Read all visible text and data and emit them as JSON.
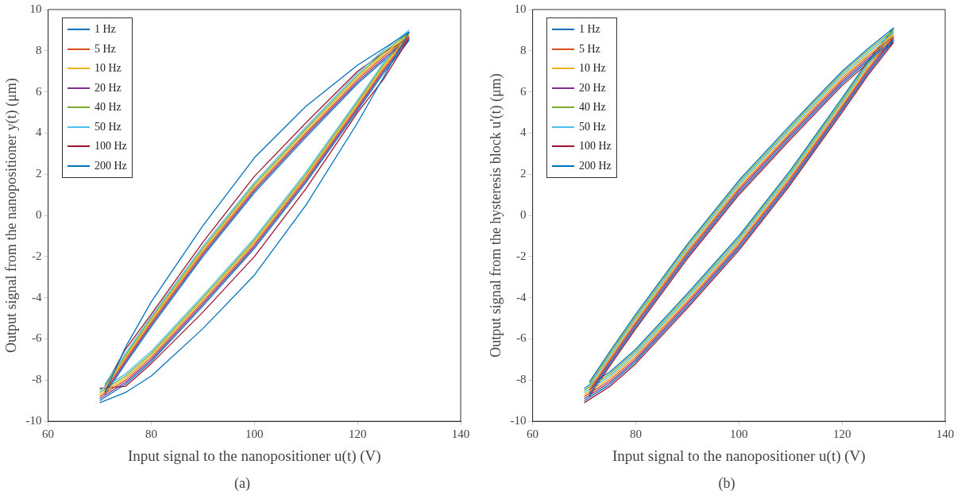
{
  "chart_data": [
    {
      "type": "line",
      "xlabel": "Input signal to the nanopositioner u(t) (V)",
      "ylabel": "Output signal from the nanopositioner y(t) (μm)",
      "xlim": [
        60,
        140
      ],
      "xticks": [
        60,
        80,
        100,
        120,
        140
      ],
      "ylim": [
        -10,
        10
      ],
      "yticks": [
        -10,
        -8,
        -6,
        -4,
        -2,
        0,
        2,
        4,
        6,
        8,
        10
      ],
      "legend": "top left",
      "annotations": [
        "(a)"
      ],
      "series": [
        {
          "name": "1 Hz",
          "color": "#0072bd",
          "x": [
            70,
            75,
            80,
            90,
            100,
            110,
            120,
            125,
            130,
            125,
            120,
            110,
            100,
            90,
            80,
            75,
            71
          ],
          "values": [
            -9.1,
            -8.6,
            -7.8,
            -5.5,
            -2.9,
            0.5,
            4.5,
            6.7,
            8.9,
            8.1,
            7.3,
            5.3,
            2.8,
            -0.5,
            -4.2,
            -6.4,
            -8.6
          ]
        },
        {
          "name": "5 Hz",
          "color": "#d95319",
          "x": [
            70,
            75,
            80,
            90,
            100,
            110,
            120,
            125,
            130,
            125,
            120,
            110,
            100,
            90,
            80,
            75,
            71
          ],
          "values": [
            -8.8,
            -8.0,
            -6.9,
            -4.2,
            -1.4,
            1.8,
            5.3,
            7.1,
            8.7,
            7.7,
            6.6,
            4.0,
            1.3,
            -1.8,
            -5.2,
            -7.0,
            -8.5
          ]
        },
        {
          "name": "10 Hz",
          "color": "#edb120",
          "x": [
            70,
            75,
            80,
            90,
            100,
            110,
            120,
            125,
            130,
            125,
            120,
            110,
            100,
            90,
            80,
            75,
            71
          ],
          "values": [
            -8.7,
            -7.9,
            -6.8,
            -4.1,
            -1.3,
            1.9,
            5.4,
            7.2,
            8.8,
            7.8,
            6.7,
            4.1,
            1.4,
            -1.7,
            -5.1,
            -6.9,
            -8.4
          ]
        },
        {
          "name": "20 Hz",
          "color": "#7e2f8e",
          "x": [
            70,
            75,
            80,
            90,
            100,
            110,
            120,
            125,
            130,
            125,
            120,
            110,
            100,
            90,
            80,
            75,
            71
          ],
          "values": [
            -8.9,
            -8.1,
            -7.0,
            -4.3,
            -1.5,
            1.7,
            5.2,
            7.0,
            8.6,
            7.6,
            6.5,
            3.9,
            1.2,
            -1.9,
            -5.3,
            -7.1,
            -8.6
          ]
        },
        {
          "name": "40 Hz",
          "color": "#77ac30",
          "x": [
            70,
            75,
            80,
            90,
            100,
            110,
            120,
            125,
            130,
            125,
            120,
            110,
            100,
            90,
            80,
            75,
            71
          ],
          "values": [
            -8.6,
            -7.8,
            -6.7,
            -4.0,
            -1.2,
            2.0,
            5.5,
            7.3,
            8.9,
            7.9,
            6.8,
            4.2,
            1.5,
            -1.6,
            -5.0,
            -6.8,
            -8.3
          ]
        },
        {
          "name": "50 Hz",
          "color": "#4dbeee",
          "x": [
            70,
            75,
            80,
            90,
            100,
            110,
            120,
            125,
            130,
            125,
            120,
            110,
            100,
            90,
            80,
            75,
            71
          ],
          "values": [
            -8.5,
            -7.7,
            -6.6,
            -3.9,
            -1.1,
            2.1,
            5.6,
            7.4,
            9.0,
            8.0,
            6.9,
            4.3,
            1.6,
            -1.5,
            -4.9,
            -6.7,
            -8.2
          ]
        },
        {
          "name": "100 Hz",
          "color": "#a2142f",
          "x": [
            70,
            75,
            80,
            90,
            100,
            110,
            120,
            125,
            130,
            125,
            120,
            110,
            100,
            90,
            80,
            75,
            71
          ],
          "values": [
            -8.4,
            -8.3,
            -7.2,
            -4.7,
            -2.0,
            1.3,
            5.0,
            6.6,
            8.6,
            7.9,
            7.0,
            4.5,
            1.9,
            -1.3,
            -4.8,
            -6.5,
            -8.3
          ]
        },
        {
          "name": "200 Hz",
          "color": "#0072bd",
          "x": [
            70,
            75,
            80,
            90,
            100,
            110,
            120,
            125,
            130,
            125,
            120,
            110,
            100,
            90,
            80,
            75,
            71
          ],
          "values": [
            -9.0,
            -8.2,
            -7.1,
            -4.4,
            -1.6,
            1.6,
            5.1,
            6.9,
            8.5,
            7.5,
            6.4,
            3.8,
            1.1,
            -2.0,
            -5.4,
            -7.2,
            -8.7
          ]
        }
      ]
    },
    {
      "type": "line",
      "xlabel": "Input signal to the nanopositioner u(t) (V)",
      "ylabel": "Output signal from the hysteresis block u'(t) (μm)",
      "xlim": [
        60,
        140
      ],
      "xticks": [
        60,
        80,
        100,
        120,
        140
      ],
      "ylim": [
        -10,
        10
      ],
      "yticks": [
        -10,
        -8,
        -6,
        -4,
        -2,
        0,
        2,
        4,
        6,
        8,
        10
      ],
      "legend": "top left",
      "annotations": [
        "(b)"
      ],
      "series": [
        {
          "name": "1 Hz",
          "color": "#0072bd",
          "x": [
            70,
            75,
            80,
            90,
            100,
            110,
            120,
            125,
            130,
            125,
            120,
            110,
            100,
            90,
            80,
            75,
            71
          ],
          "values": [
            -9.0,
            -8.2,
            -7.1,
            -4.4,
            -1.6,
            1.6,
            5.1,
            6.9,
            8.5,
            7.5,
            6.4,
            3.8,
            1.1,
            -2.0,
            -5.4,
            -7.2,
            -8.7
          ]
        },
        {
          "name": "5 Hz",
          "color": "#d95319",
          "x": [
            70,
            75,
            80,
            90,
            100,
            110,
            120,
            125,
            130,
            125,
            120,
            110,
            100,
            90,
            80,
            75,
            71
          ],
          "values": [
            -8.8,
            -8.0,
            -6.9,
            -4.2,
            -1.4,
            1.8,
            5.3,
            7.1,
            8.7,
            7.7,
            6.6,
            4.0,
            1.3,
            -1.8,
            -5.2,
            -7.0,
            -8.5
          ]
        },
        {
          "name": "10 Hz",
          "color": "#edb120",
          "x": [
            70,
            75,
            80,
            90,
            100,
            110,
            120,
            125,
            130,
            125,
            120,
            110,
            100,
            90,
            80,
            75,
            71
          ],
          "values": [
            -8.7,
            -7.9,
            -6.8,
            -4.1,
            -1.3,
            1.9,
            5.4,
            7.2,
            8.8,
            7.8,
            6.7,
            4.1,
            1.4,
            -1.7,
            -5.1,
            -6.9,
            -8.4
          ]
        },
        {
          "name": "20 Hz",
          "color": "#7e2f8e",
          "x": [
            70,
            75,
            80,
            90,
            100,
            110,
            120,
            125,
            130,
            125,
            120,
            110,
            100,
            90,
            80,
            75,
            71
          ],
          "values": [
            -8.9,
            -8.1,
            -7.0,
            -4.3,
            -1.5,
            1.7,
            5.2,
            7.0,
            8.6,
            7.6,
            6.5,
            3.9,
            1.2,
            -1.9,
            -5.3,
            -7.1,
            -8.6
          ]
        },
        {
          "name": "40 Hz",
          "color": "#77ac30",
          "x": [
            70,
            75,
            80,
            90,
            100,
            110,
            120,
            125,
            130,
            125,
            120,
            110,
            100,
            90,
            80,
            75,
            71
          ],
          "values": [
            -8.5,
            -7.7,
            -6.6,
            -3.9,
            -1.1,
            2.1,
            5.6,
            7.4,
            9.0,
            8.0,
            6.9,
            4.3,
            1.6,
            -1.5,
            -4.9,
            -6.7,
            -8.2
          ]
        },
        {
          "name": "50 Hz",
          "color": "#4dbeee",
          "x": [
            70,
            75,
            80,
            90,
            100,
            110,
            120,
            125,
            130,
            125,
            120,
            110,
            100,
            90,
            80,
            75,
            71
          ],
          "values": [
            -8.6,
            -7.8,
            -6.7,
            -4.0,
            -1.2,
            2.0,
            5.5,
            7.3,
            8.9,
            7.9,
            6.8,
            4.2,
            1.5,
            -1.6,
            -5.0,
            -6.8,
            -8.3
          ]
        },
        {
          "name": "100 Hz",
          "color": "#a2142f",
          "x": [
            70,
            75,
            80,
            90,
            100,
            110,
            120,
            125,
            130,
            125,
            120,
            110,
            100,
            90,
            80,
            75,
            71
          ],
          "values": [
            -9.1,
            -8.3,
            -7.2,
            -4.5,
            -1.7,
            1.5,
            5.0,
            6.8,
            8.4,
            7.4,
            6.3,
            3.7,
            1.0,
            -2.1,
            -5.5,
            -7.3,
            -8.8
          ]
        },
        {
          "name": "200 Hz",
          "color": "#0072bd",
          "x": [
            70,
            75,
            80,
            90,
            100,
            110,
            120,
            125,
            130,
            125,
            120,
            110,
            100,
            90,
            80,
            75,
            71
          ],
          "values": [
            -8.4,
            -7.6,
            -6.5,
            -3.8,
            -1.0,
            2.2,
            5.7,
            7.5,
            9.1,
            8.1,
            7.0,
            4.4,
            1.7,
            -1.4,
            -4.8,
            -6.6,
            -8.1
          ]
        }
      ]
    }
  ]
}
